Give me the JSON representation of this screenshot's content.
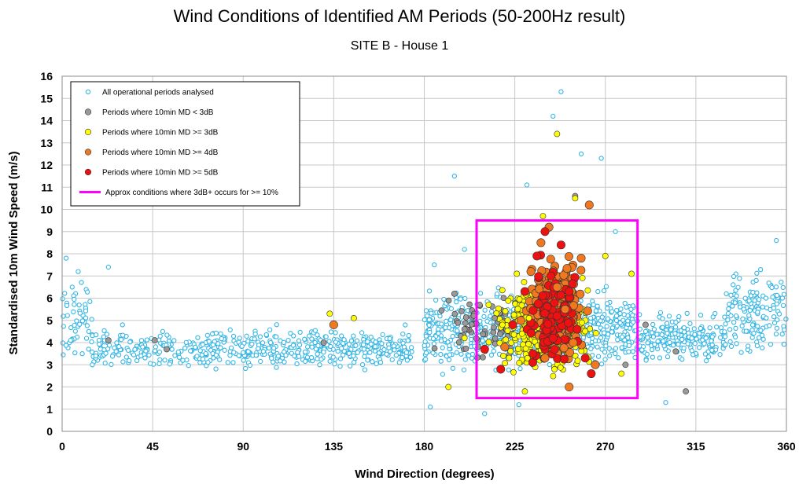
{
  "chart_data": {
    "type": "scatter",
    "title": "Wind Conditions of Identified AM Periods (50-200Hz result)",
    "subtitle": "SITE B - House 1",
    "xlabel": "Wind Direction (degrees)",
    "ylabel": "Standardised 10m Wind Speed (m/s)",
    "xlim": [
      0,
      360
    ],
    "ylim": [
      0,
      16
    ],
    "xticks": [
      "0",
      "45",
      "90",
      "135",
      "180",
      "225",
      "270",
      "315",
      "360"
    ],
    "yticks": [
      "0",
      "1",
      "2",
      "3",
      "4",
      "5",
      "6",
      "7",
      "8",
      "9",
      "10",
      "11",
      "12",
      "13",
      "14",
      "15",
      "16"
    ],
    "grid": true,
    "legend_position": "top-left",
    "series": [
      {
        "name": "All operational periods analysed",
        "color": "#33b5e5",
        "marker": "open-circle",
        "points": [
          [
            2,
            7.8
          ],
          [
            5,
            6.5
          ],
          [
            8,
            7.2
          ],
          [
            10,
            3.5
          ],
          [
            15,
            3.0
          ],
          [
            23,
            7.4
          ],
          [
            30,
            4.8
          ],
          [
            40,
            3.8
          ],
          [
            50,
            4.5
          ],
          [
            60,
            3.2
          ],
          [
            75,
            3.9
          ],
          [
            85,
            3.1
          ],
          [
            100,
            3.6
          ],
          [
            115,
            4.3
          ],
          [
            128,
            3.0
          ],
          [
            150,
            3.7
          ],
          [
            170,
            3.8
          ],
          [
            185,
            7.5
          ],
          [
            195,
            11.5
          ],
          [
            200,
            8.2
          ],
          [
            248,
            15.3
          ],
          [
            244,
            14.2
          ],
          [
            231,
            11.1
          ],
          [
            258,
            12.5
          ],
          [
            268,
            12.3
          ],
          [
            275,
            9.0
          ],
          [
            290,
            4.5
          ],
          [
            305,
            3.6
          ],
          [
            320,
            4.2
          ],
          [
            335,
            5.2
          ],
          [
            345,
            6.8
          ],
          [
            355,
            8.6
          ],
          [
            358,
            6.0
          ],
          [
            183,
            1.1
          ],
          [
            227,
            1.2
          ],
          [
            210,
            0.8
          ],
          [
            300,
            1.3
          ]
        ]
      },
      {
        "name": "Periods where 10min MD < 3dB",
        "color": "#999999",
        "marker": "filled-circle",
        "points": [
          [
            23,
            4.1
          ],
          [
            46,
            4.1
          ],
          [
            52,
            3.7
          ],
          [
            130,
            4.0
          ],
          [
            195,
            6.2
          ],
          [
            200,
            4.6
          ],
          [
            215,
            5.1
          ],
          [
            255,
            10.6
          ],
          [
            280,
            3.0
          ],
          [
            290,
            4.8
          ],
          [
            305,
            3.6
          ],
          [
            310,
            1.8
          ]
        ]
      },
      {
        "name": "Periods where 10min MD >= 3dB",
        "color": "#ffff00",
        "marker": "filled-circle",
        "points": [
          [
            133,
            5.3
          ],
          [
            145,
            5.1
          ],
          [
            192,
            2.0
          ],
          [
            200,
            4.2
          ],
          [
            212,
            5.7
          ],
          [
            226,
            7.1
          ],
          [
            232,
            5.1
          ],
          [
            239,
            9.7
          ],
          [
            246,
            13.4
          ],
          [
            255,
            10.5
          ],
          [
            270,
            7.9
          ],
          [
            283,
            7.1
          ],
          [
            278,
            2.6
          ],
          [
            230,
            1.8
          ]
        ]
      },
      {
        "name": "Periods where 10min MD >= 4dB",
        "color": "#f07820",
        "marker": "filled-circle",
        "points": [
          [
            135,
            4.8
          ],
          [
            220,
            3.8
          ],
          [
            228,
            5.0
          ],
          [
            233,
            7.2
          ],
          [
            238,
            8.5
          ],
          [
            242,
            9.2
          ],
          [
            246,
            6.5
          ],
          [
            250,
            5.5
          ],
          [
            254,
            4.0
          ],
          [
            258,
            7.8
          ],
          [
            262,
            10.2
          ],
          [
            265,
            3.0
          ],
          [
            252,
            2.0
          ],
          [
            240,
            3.3
          ]
        ]
      },
      {
        "name": "Periods where 10min MD >= 5dB",
        "color": "#ee1111",
        "marker": "filled-circle",
        "points": [
          [
            210,
            3.7
          ],
          [
            218,
            2.8
          ],
          [
            224,
            4.8
          ],
          [
            230,
            6.3
          ],
          [
            236,
            7.9
          ],
          [
            240,
            9.0
          ],
          [
            243,
            7.0
          ],
          [
            246,
            5.2
          ],
          [
            248,
            8.4
          ],
          [
            252,
            6.3
          ],
          [
            256,
            4.6
          ],
          [
            260,
            3.3
          ],
          [
            263,
            2.6
          ],
          [
            234,
            3.5
          ],
          [
            244,
            4.2
          ]
        ]
      },
      {
        "name": "Approx conditions where 3dB+ occurs for >= 10%",
        "color": "#ff00ff",
        "marker": "rectangle",
        "rect": {
          "x": [
            206,
            286
          ],
          "y": [
            1.5,
            9.5
          ]
        }
      }
    ]
  }
}
